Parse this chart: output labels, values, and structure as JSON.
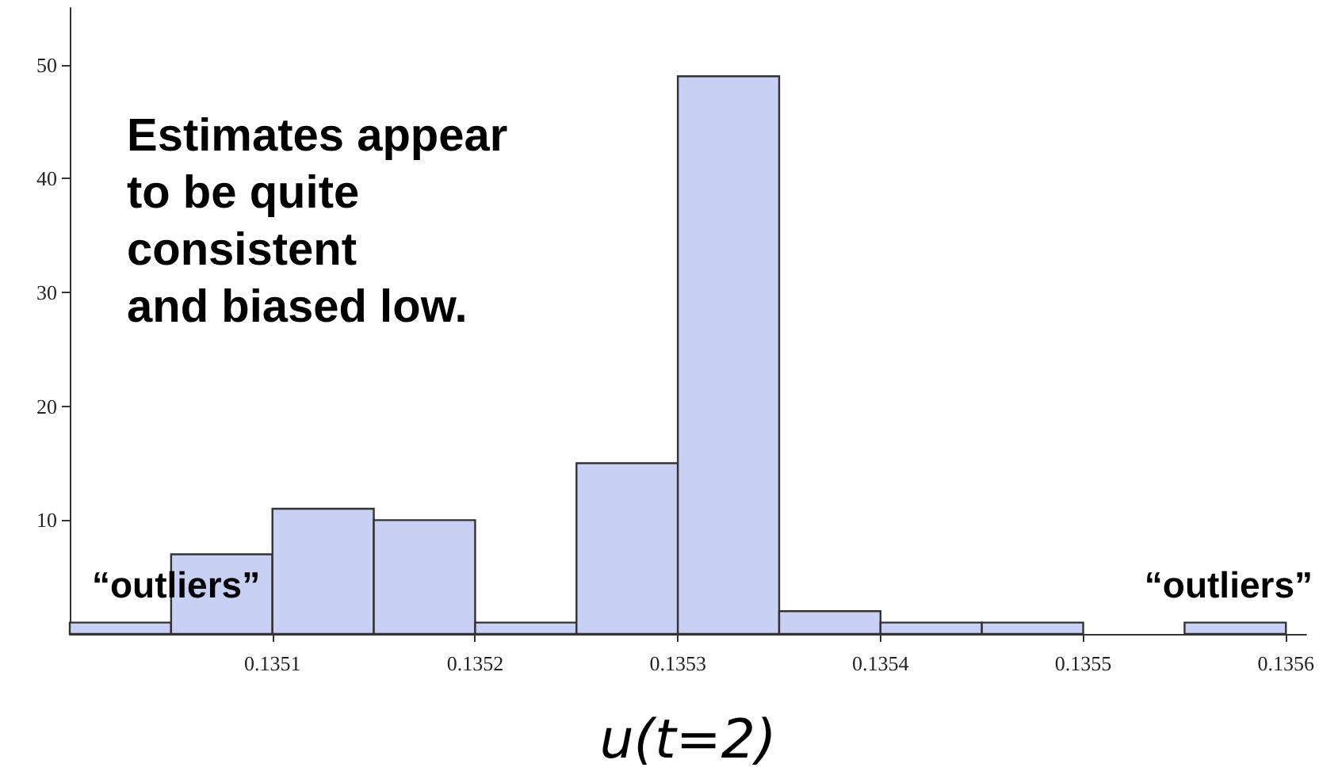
{
  "chart_data": {
    "type": "histogram",
    "xlabel": "u(t=2)",
    "bins": [
      0.135,
      0.13505,
      0.1351,
      0.13515,
      0.1352,
      0.13525,
      0.1353,
      0.13535,
      0.1354,
      0.13545,
      0.1355,
      0.13555,
      0.1356
    ],
    "values": [
      1,
      7,
      11,
      10,
      1,
      15,
      49,
      2,
      1,
      1,
      0,
      1
    ],
    "color": "#c8d0f4",
    "xlim": [
      0.135,
      0.13561
    ],
    "xticks": [
      0.1351,
      0.1352,
      0.1353,
      0.1354,
      0.1355,
      0.1356
    ],
    "ylim": [
      0,
      55
    ],
    "yticks": [
      10,
      20,
      30,
      40,
      50
    ],
    "grid": false,
    "annotations": [
      "Estimates appear\nto be quite\nconsistent\nand biased low.",
      "“outliers”",
      "“outliers”"
    ]
  }
}
